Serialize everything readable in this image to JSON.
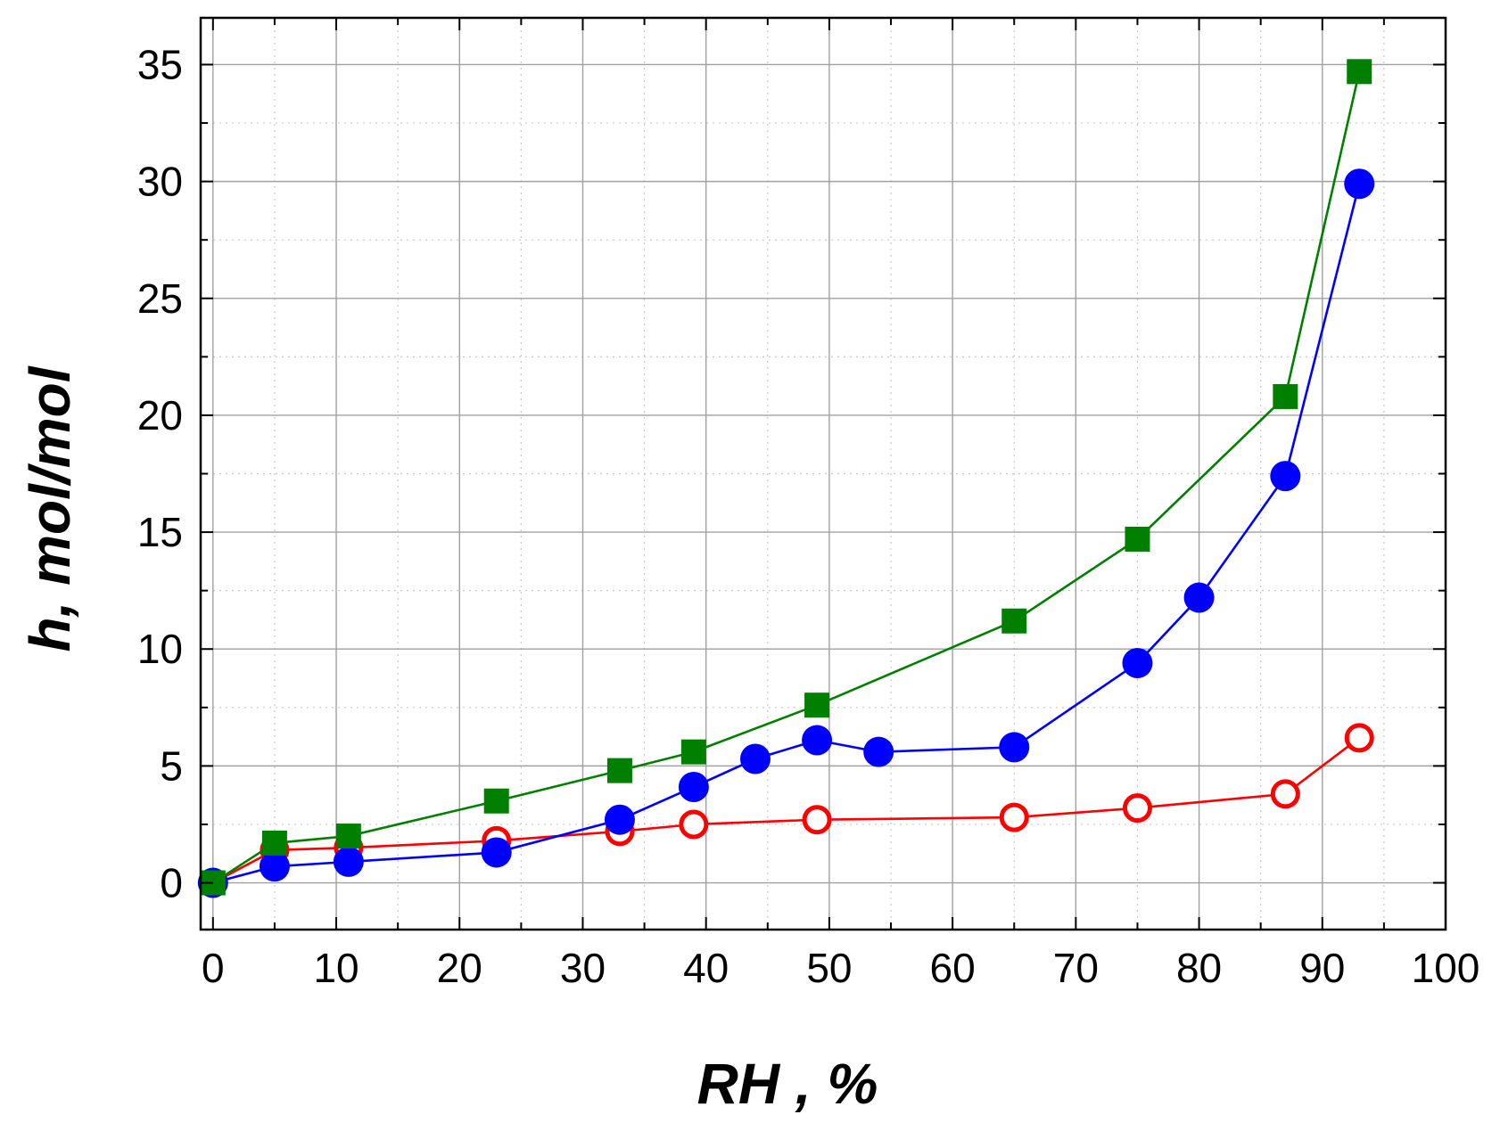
{
  "chart_data": {
    "type": "line",
    "xlabel": "RH , %",
    "ylabel": "h, mol/mol",
    "xlim": [
      -1,
      100
    ],
    "ylim": [
      -2,
      37
    ],
    "xticks": [
      0,
      10,
      20,
      30,
      40,
      50,
      60,
      70,
      80,
      90,
      100
    ],
    "yticks": [
      0,
      5,
      10,
      15,
      20,
      25,
      30,
      35
    ],
    "grid": true,
    "series": [
      {
        "marker": "square",
        "color": "#007f00",
        "filled": true,
        "x": [
          0,
          5,
          11,
          23,
          33,
          39,
          49,
          65,
          75,
          87,
          93
        ],
        "y": [
          0,
          1.7,
          2.0,
          3.5,
          4.8,
          5.6,
          7.6,
          11.2,
          14.7,
          20.8,
          34.7
        ]
      },
      {
        "marker": "circle",
        "color": "#0000ff",
        "filled": true,
        "x": [
          0,
          5,
          11,
          23,
          33,
          39,
          44,
          49,
          54,
          65,
          75,
          80,
          87,
          93
        ],
        "y": [
          0,
          0.7,
          0.9,
          1.3,
          2.7,
          4.1,
          5.3,
          6.1,
          5.6,
          5.8,
          9.4,
          12.2,
          17.4,
          29.9
        ]
      },
      {
        "marker": "circle",
        "color": "#ff0000",
        "filled": false,
        "x": [
          0,
          5,
          11,
          23,
          33,
          39,
          49,
          65,
          75,
          87,
          93
        ],
        "y": [
          0,
          1.4,
          1.5,
          1.8,
          2.2,
          2.5,
          2.7,
          2.8,
          3.2,
          3.8,
          6.2
        ]
      }
    ]
  }
}
